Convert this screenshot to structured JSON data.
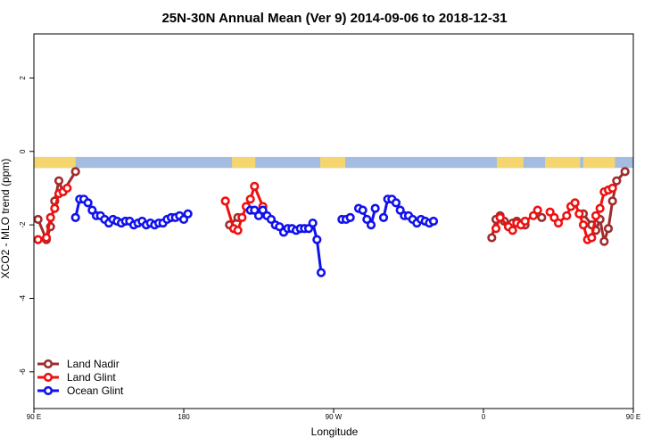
{
  "chart_data": {
    "type": "line",
    "title": "25N-30N Annual Mean (Ver 9)   2014-09-06 to 2018-12-31",
    "xlabel": "Longitude",
    "ylabel": "XCO2 - MLO trend (ppm)",
    "xlim": [
      90,
      450
    ],
    "ylim": [
      -7,
      3.2
    ],
    "x_ticks": [
      {
        "value": 90,
        "label": "90 E"
      },
      {
        "value": 180,
        "label": "180"
      },
      {
        "value": 270,
        "label": "90 W"
      },
      {
        "value": 360,
        "label": "0"
      },
      {
        "value": 450,
        "label": "90 E"
      }
    ],
    "y_ticks": [
      {
        "value": 2,
        "label": "2"
      },
      {
        "value": 0,
        "label": "0"
      },
      {
        "value": -2,
        "label": "-2"
      },
      {
        "value": -4,
        "label": "-4"
      },
      {
        "value": -6,
        "label": "-6"
      }
    ],
    "landmask_band": {
      "y_top": -0.15,
      "y_bottom": -0.45,
      "ocean_color": "#a3bcdf",
      "land_color": "#f5d66e",
      "land_segments": [
        [
          90,
          115
        ],
        [
          209,
          223
        ],
        [
          262,
          277
        ],
        [
          368,
          384
        ],
        [
          397,
          418
        ],
        [
          420,
          439
        ]
      ]
    },
    "legend": {
      "position": "bottom-left"
    },
    "series": [
      {
        "name": "Land Nadir",
        "color": "#a02c2c",
        "segments": [
          [
            [
              92.5,
              -1.85
            ],
            [
              97.5,
              -2.4
            ],
            [
              100,
              -2.05
            ],
            [
              102.5,
              -1.35
            ],
            [
              105,
              -0.8
            ],
            [
              107.5,
              -1.1
            ],
            [
              115,
              -0.55
            ]
          ],
          [
            [
              207.5,
              -2.0
            ],
            [
              212.5,
              -1.8
            ]
          ],
          [
            [
              365,
              -2.35
            ],
            [
              367.5,
              -1.85
            ],
            [
              370,
              -1.75
            ],
            [
              372.5,
              -1.9
            ],
            [
              375,
              -2.05
            ],
            [
              377.5,
              -1.95
            ],
            [
              380,
              -1.9
            ],
            [
              385,
              -2.0
            ]
          ],
          [
            [
              395,
              -1.8
            ]
          ],
          [
            [
              420,
              -1.7
            ],
            [
              425,
              -2.0
            ],
            [
              427.5,
              -2.15
            ],
            [
              430,
              -1.85
            ],
            [
              432.5,
              -2.45
            ],
            [
              435,
              -2.1
            ],
            [
              437.5,
              -1.35
            ],
            [
              440,
              -0.8
            ],
            [
              445,
              -0.55
            ]
          ]
        ]
      },
      {
        "name": "Land Glint",
        "color": "#ee1111",
        "segments": [
          [
            [
              92.5,
              -2.4
            ],
            [
              97.5,
              -2.35
            ],
            [
              100,
              -1.8
            ],
            [
              102.5,
              -1.55
            ],
            [
              105,
              -1.15
            ],
            [
              107.5,
              -1.1
            ],
            [
              110,
              -1.0
            ]
          ],
          [
            [
              205,
              -1.35
            ],
            [
              210,
              -2.1
            ],
            [
              212.5,
              -2.15
            ],
            [
              215,
              -1.8
            ],
            [
              217.5,
              -1.5
            ],
            [
              220,
              -1.3
            ],
            [
              222.5,
              -0.95
            ],
            [
              227.5,
              -1.5
            ]
          ],
          [
            [
              367.5,
              -2.1
            ],
            [
              370,
              -1.8
            ],
            [
              375,
              -2.05
            ],
            [
              377.5,
              -2.15
            ],
            [
              380,
              -1.95
            ],
            [
              382.5,
              -2.0
            ],
            [
              385,
              -1.9
            ],
            [
              390,
              -1.75
            ],
            [
              392.5,
              -1.6
            ]
          ],
          [
            [
              400,
              -1.65
            ],
            [
              402.5,
              -1.8
            ],
            [
              405,
              -1.95
            ],
            [
              410,
              -1.75
            ],
            [
              412.5,
              -1.5
            ],
            [
              415,
              -1.4
            ],
            [
              417.5,
              -1.7
            ],
            [
              420,
              -2.0
            ],
            [
              422.5,
              -2.4
            ],
            [
              425,
              -2.35
            ],
            [
              427.5,
              -1.75
            ],
            [
              430,
              -1.55
            ],
            [
              432.5,
              -1.1
            ],
            [
              435,
              -1.05
            ],
            [
              437.5,
              -1.0
            ]
          ]
        ]
      },
      {
        "name": "Ocean Glint",
        "color": "#1111ee",
        "segments": [
          [
            [
              115,
              -1.8
            ],
            [
              117.5,
              -1.3
            ],
            [
              120,
              -1.3
            ],
            [
              122.5,
              -1.4
            ],
            [
              125,
              -1.6
            ],
            [
              127.5,
              -1.75
            ],
            [
              130,
              -1.75
            ],
            [
              132.5,
              -1.85
            ],
            [
              135,
              -1.95
            ],
            [
              137.5,
              -1.85
            ],
            [
              140,
              -1.9
            ],
            [
              142.5,
              -1.95
            ],
            [
              145,
              -1.9
            ],
            [
              147.5,
              -1.9
            ],
            [
              150,
              -2.0
            ],
            [
              152.5,
              -1.95
            ],
            [
              155,
              -1.9
            ],
            [
              157.5,
              -2.0
            ],
            [
              160,
              -1.95
            ],
            [
              162.5,
              -2.0
            ],
            [
              165,
              -1.95
            ],
            [
              167.5,
              -1.95
            ],
            [
              170,
              -1.85
            ],
            [
              172.5,
              -1.8
            ],
            [
              175,
              -1.8
            ],
            [
              177.5,
              -1.75
            ],
            [
              180,
              -1.85
            ],
            [
              182.5,
              -1.7
            ]
          ],
          [
            [
              220,
              -1.6
            ],
            [
              222.5,
              -1.6
            ],
            [
              225,
              -1.75
            ],
            [
              227.5,
              -1.6
            ]
          ],
          [
            [
              230,
              -1.75
            ],
            [
              232.5,
              -1.85
            ],
            [
              235,
              -2.0
            ],
            [
              237.5,
              -2.05
            ],
            [
              240,
              -2.2
            ],
            [
              242.5,
              -2.1
            ],
            [
              245,
              -2.1
            ],
            [
              247.5,
              -2.15
            ],
            [
              250,
              -2.1
            ],
            [
              252.5,
              -2.1
            ],
            [
              255,
              -2.1
            ],
            [
              257.5,
              -1.95
            ],
            [
              260,
              -2.4
            ],
            [
              262.5,
              -3.3
            ]
          ],
          [
            [
              275,
              -1.85
            ],
            [
              277.5,
              -1.85
            ],
            [
              280,
              -1.8
            ]
          ],
          [
            [
              285,
              -1.55
            ],
            [
              287.5,
              -1.6
            ],
            [
              290,
              -1.85
            ],
            [
              292.5,
              -2.0
            ],
            [
              295,
              -1.55
            ]
          ],
          [
            [
              300,
              -1.8
            ],
            [
              302.5,
              -1.3
            ],
            [
              305,
              -1.3
            ],
            [
              307.5,
              -1.4
            ],
            [
              310,
              -1.6
            ],
            [
              312.5,
              -1.75
            ],
            [
              315,
              -1.75
            ],
            [
              317.5,
              -1.85
            ],
            [
              320,
              -1.95
            ],
            [
              322.5,
              -1.85
            ],
            [
              325,
              -1.9
            ],
            [
              327.5,
              -1.95
            ],
            [
              330,
              -1.9
            ]
          ]
        ]
      }
    ]
  }
}
